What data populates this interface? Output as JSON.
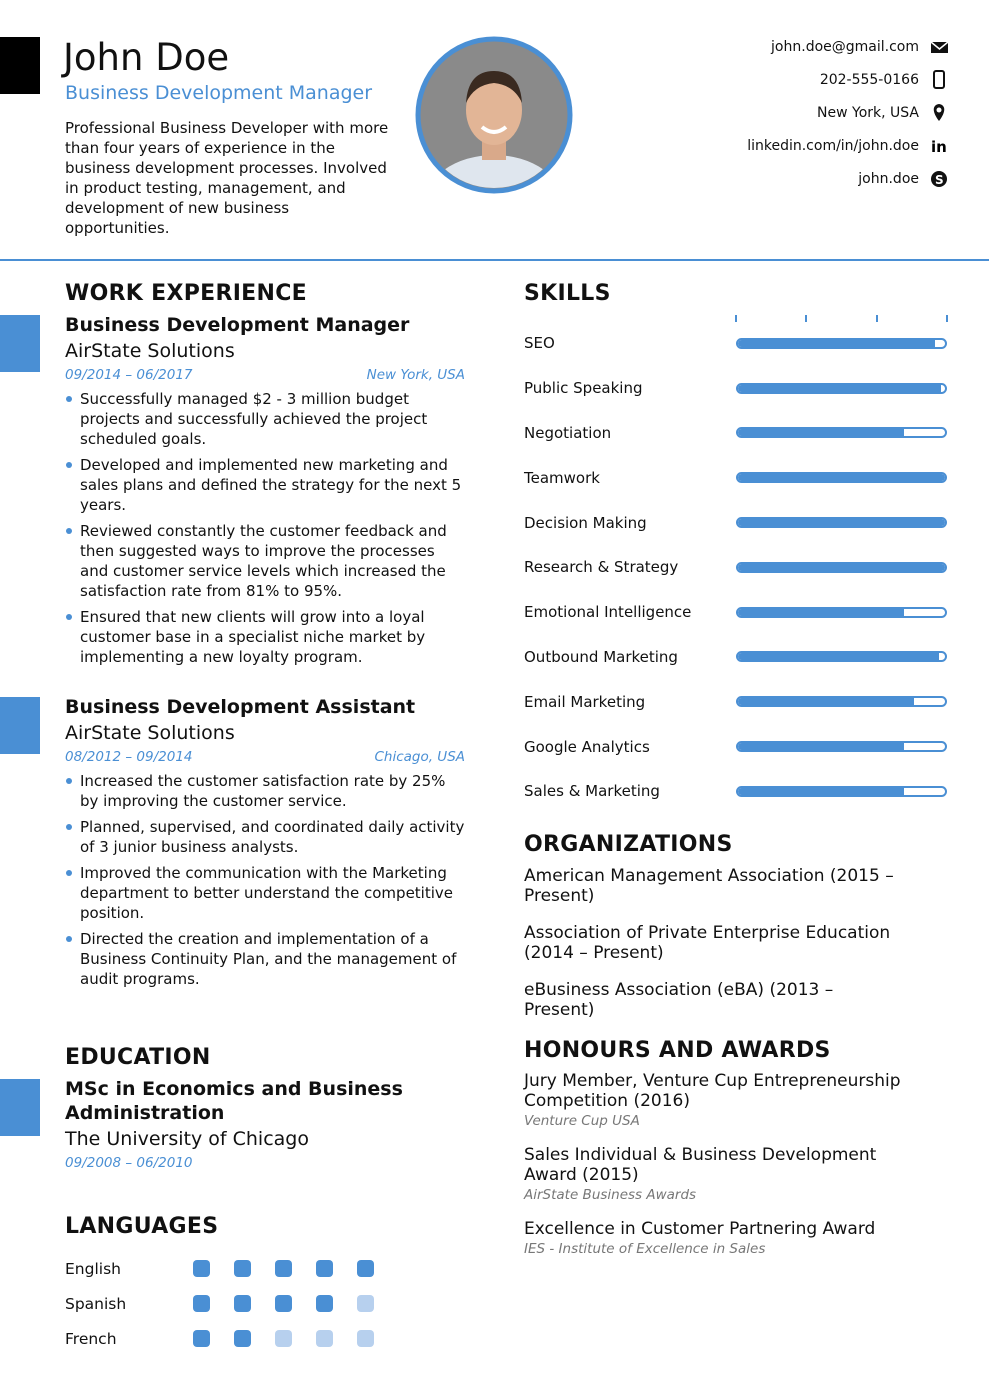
{
  "header": {
    "name": "John Doe",
    "title": "Business Development Manager",
    "summary": "Professional Business Developer with more than four years of experience in the business development processes. Involved in product testing, management, and development of new business opportunities.",
    "contacts": [
      "john.doe@gmail.com",
      "202-555-0166",
      "New York, USA",
      "linkedin.com/in/john.doe",
      "john.doe"
    ]
  },
  "work_experience": {
    "heading": "WORK EXPERIENCE",
    "jobs": [
      {
        "title": "Business Development Manager",
        "company": "AirState Solutions",
        "dates": "09/2014 – 06/2017",
        "location": "New York, USA",
        "bullets": [
          "Successfully managed $2 - 3 million budget projects and successfully achieved the project scheduled goals.",
          "Developed and implemented new marketing and sales plans and defined the strategy for the next 5 years.",
          "Reviewed constantly the customer feedback and then suggested ways to improve the processes and customer service levels which increased the satisfaction rate from 81% to 95%.",
          "Ensured that new clients will grow into a loyal customer base in a specialist niche market by implementing a new loyalty program."
        ]
      },
      {
        "title": "Business Development Assistant",
        "company": "AirState Solutions",
        "dates": "08/2012 – 09/2014",
        "location": "Chicago, USA",
        "bullets": [
          "Increased the customer satisfaction rate by 25% by improving the customer service.",
          "Planned, supervised, and coordinated daily activity of 3 junior business analysts.",
          "Improved the communication with the Marketing department to better understand the competitive position.",
          "Directed the creation and implementation of a Business Continuity Plan, and the management of audit programs."
        ]
      }
    ]
  },
  "education": {
    "heading": "EDUCATION",
    "items": [
      {
        "degree": "MSc in Economics and Business Administration",
        "school": "The University of Chicago",
        "dates": "09/2008 – 06/2010"
      }
    ]
  },
  "languages": {
    "heading": "LANGUAGES",
    "level_max": 5,
    "items": [
      {
        "name": "English",
        "level": 5
      },
      {
        "name": "Spanish",
        "level": 4
      },
      {
        "name": "French",
        "level": 2
      }
    ]
  },
  "skills": {
    "heading": "SKILLS",
    "level_max": 100,
    "items": [
      {
        "name": "SEO",
        "level": 95
      },
      {
        "name": "Public Speaking",
        "level": 98
      },
      {
        "name": "Negotiation",
        "level": 80
      },
      {
        "name": "Teamwork",
        "level": 100
      },
      {
        "name": "Decision Making",
        "level": 100
      },
      {
        "name": "Research & Strategy",
        "level": 100
      },
      {
        "name": "Emotional Intelligence",
        "level": 80
      },
      {
        "name": "Outbound Marketing",
        "level": 97
      },
      {
        "name": "Email Marketing",
        "level": 85
      },
      {
        "name": "Google Analytics",
        "level": 80
      },
      {
        "name": "Sales & Marketing",
        "level": 80
      }
    ]
  },
  "organizations": {
    "heading": "ORGANIZATIONS",
    "items": [
      "American Management Association (2015 – Present)",
      "Association of Private Enterprise Education (2014 – Present)",
      "eBusiness Association (eBA) (2013 – Present)"
    ]
  },
  "honours": {
    "heading": "HONOURS AND AWARDS",
    "items": [
      {
        "title": "Jury Member, Venture Cup Entrepreneurship Competition (2016)",
        "issuer": "Venture Cup USA"
      },
      {
        "title": "Sales Individual & Business Development Award (2015)",
        "issuer": "AirState Business Awards"
      },
      {
        "title": "Excellence in Customer Partnering Award",
        "issuer": "IES - Institute of Excellence in Sales"
      }
    ]
  }
}
